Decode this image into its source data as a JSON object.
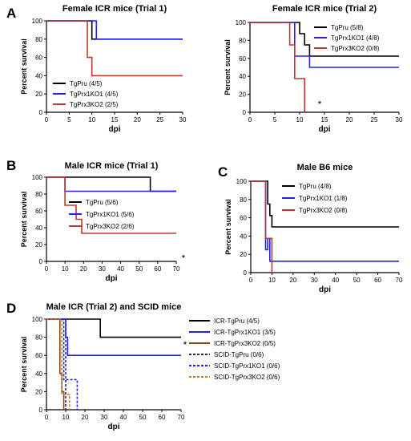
{
  "figure": {
    "description_panels": [
      "A",
      "B",
      "C",
      "D"
    ]
  },
  "chart_data": [
    {
      "type": "line",
      "panel_letter": "A",
      "title": "Female ICR mice (Trial 1)",
      "xlabel": "dpi",
      "ylabel": "Percent survival",
      "xlim": [
        0,
        30
      ],
      "ylim": [
        0,
        100
      ],
      "xticks": [
        0,
        5,
        10,
        15,
        20,
        25,
        30
      ],
      "yticks": [
        0,
        20,
        40,
        60,
        80,
        100
      ],
      "legend_position": "bottom-left",
      "annotation": "",
      "series": [
        {
          "name": "TgPru (4/5)",
          "color": "#000000",
          "dash": false,
          "points": [
            [
              0,
              100
            ],
            [
              10,
              100
            ],
            [
              10,
              80
            ],
            [
              30,
              80
            ]
          ]
        },
        {
          "name": "TgPrx1KO1 (4/5)",
          "color": "#2323e6",
          "dash": false,
          "points": [
            [
              0,
              100
            ],
            [
              11,
              100
            ],
            [
              11,
              80
            ],
            [
              30,
              80
            ]
          ]
        },
        {
          "name": "TgPrx3KO2 (2/5)",
          "color": "#c0392b",
          "dash": false,
          "points": [
            [
              0,
              100
            ],
            [
              9,
              100
            ],
            [
              9,
              60
            ],
            [
              10,
              60
            ],
            [
              10,
              40
            ],
            [
              30,
              40
            ]
          ]
        }
      ]
    },
    {
      "type": "line",
      "panel_letter": "",
      "title": "Female ICR mice (Trial 2)",
      "xlabel": "dpi",
      "ylabel": "Percent survival",
      "xlim": [
        0,
        30
      ],
      "ylim": [
        0,
        100
      ],
      "xticks": [
        0,
        5,
        10,
        15,
        20,
        25,
        30
      ],
      "yticks": [
        0,
        20,
        40,
        60,
        80,
        100
      ],
      "legend_position": "top-right",
      "annotation": "*",
      "series": [
        {
          "name": "TgPru (5/8)",
          "color": "#000000",
          "dash": false,
          "points": [
            [
              0,
              100
            ],
            [
              10,
              100
            ],
            [
              10,
              87.5
            ],
            [
              11,
              87.5
            ],
            [
              11,
              75
            ],
            [
              12,
              75
            ],
            [
              12,
              62.5
            ],
            [
              30,
              62.5
            ]
          ]
        },
        {
          "name": "TgPrx1KO1 (4/8)",
          "color": "#2323e6",
          "dash": false,
          "points": [
            [
              0,
              100
            ],
            [
              9,
              100
            ],
            [
              9,
              62.5
            ],
            [
              12,
              62.5
            ],
            [
              12,
              50
            ],
            [
              30,
              50
            ]
          ]
        },
        {
          "name": "TgPrx3KO2 (0/8)",
          "color": "#c0392b",
          "dash": false,
          "points": [
            [
              0,
              100
            ],
            [
              8,
              100
            ],
            [
              8,
              75
            ],
            [
              9,
              75
            ],
            [
              9,
              37.5
            ],
            [
              11,
              37.5
            ],
            [
              11,
              0
            ]
          ]
        }
      ]
    },
    {
      "type": "line",
      "panel_letter": "B",
      "title": "Male ICR mice (Trial 1)",
      "xlabel": "dpi",
      "ylabel": "Percent survival",
      "xlim": [
        0,
        70
      ],
      "ylim": [
        0,
        100
      ],
      "xticks": [
        0,
        10,
        20,
        30,
        40,
        50,
        60,
        70
      ],
      "yticks": [
        0,
        20,
        40,
        60,
        80,
        100
      ],
      "legend_position": "center-right",
      "annotation": "*",
      "series": [
        {
          "name": "TgPru (5/6)",
          "color": "#000000",
          "dash": false,
          "points": [
            [
              0,
              100
            ],
            [
              56,
              100
            ],
            [
              56,
              83.3
            ],
            [
              70,
              83.3
            ]
          ]
        },
        {
          "name": "TgPrx1KO1 (5/6)",
          "color": "#2323e6",
          "dash": false,
          "points": [
            [
              0,
              100
            ],
            [
              10,
              100
            ],
            [
              10,
              83.3
            ],
            [
              70,
              83.3
            ]
          ]
        },
        {
          "name": "TgPrx3KO2 (2/6)",
          "color": "#c0392b",
          "dash": false,
          "points": [
            [
              0,
              100
            ],
            [
              10,
              100
            ],
            [
              10,
              66.7
            ],
            [
              16,
              66.7
            ],
            [
              16,
              50
            ],
            [
              19,
              50
            ],
            [
              19,
              33.3
            ],
            [
              70,
              33.3
            ]
          ]
        }
      ]
    },
    {
      "type": "line",
      "panel_letter": "C",
      "title": "Male B6 mice",
      "xlabel": "dpi",
      "ylabel": "Percent survival",
      "xlim": [
        0,
        70
      ],
      "ylim": [
        0,
        100
      ],
      "xticks": [
        0,
        10,
        20,
        30,
        40,
        50,
        60,
        70
      ],
      "yticks": [
        0,
        20,
        40,
        60,
        80,
        100
      ],
      "legend_position": "top-right",
      "annotation": "",
      "series": [
        {
          "name": "TgPru (4/8)",
          "color": "#000000",
          "dash": false,
          "points": [
            [
              0,
              100
            ],
            [
              8,
              100
            ],
            [
              8,
              75
            ],
            [
              9,
              75
            ],
            [
              9,
              62.5
            ],
            [
              10,
              62.5
            ],
            [
              10,
              50
            ],
            [
              70,
              50
            ]
          ]
        },
        {
          "name": "TgPrx1KO1 (1/8)",
          "color": "#2323e6",
          "dash": false,
          "points": [
            [
              0,
              100
            ],
            [
              7,
              100
            ],
            [
              7,
              25
            ],
            [
              8,
              25
            ],
            [
              8,
              37.5
            ],
            [
              9,
              37.5
            ],
            [
              9,
              12.5
            ],
            [
              70,
              12.5
            ]
          ]
        },
        {
          "name": "TgPrx3KO2 (0/8)",
          "color": "#c0392b",
          "dash": false,
          "points": [
            [
              0,
              100
            ],
            [
              7,
              100
            ],
            [
              7,
              37.5
            ],
            [
              10,
              37.5
            ],
            [
              10,
              0
            ]
          ]
        }
      ]
    },
    {
      "type": "line",
      "panel_letter": "D",
      "title": "Male ICR (Trial 2) and SCID mice",
      "xlabel": "dpi",
      "ylabel": "Percent survival",
      "xlim": [
        0,
        70
      ],
      "ylim": [
        0,
        100
      ],
      "xticks": [
        0,
        10,
        20,
        30,
        40,
        50,
        60,
        70
      ],
      "yticks": [
        0,
        20,
        40,
        60,
        80,
        100
      ],
      "legend_position": "right-outside",
      "annotation": "*",
      "series": [
        {
          "name": "ICR-TgPru (4/5)",
          "color": "#000000",
          "dash": false,
          "points": [
            [
              0,
              100
            ],
            [
              28,
              100
            ],
            [
              28,
              80
            ],
            [
              70,
              80
            ]
          ]
        },
        {
          "name": "ICR-TgPrx1KO1 (3/5)",
          "color": "#2323e6",
          "dash": false,
          "points": [
            [
              0,
              100
            ],
            [
              10,
              100
            ],
            [
              10,
              80
            ],
            [
              11,
              80
            ],
            [
              11,
              60
            ],
            [
              70,
              60
            ]
          ]
        },
        {
          "name": "ICR-TgPrx3KO2 (0/5)",
          "color": "#8b4513",
          "dash": false,
          "points": [
            [
              0,
              100
            ],
            [
              7,
              100
            ],
            [
              7,
              40
            ],
            [
              8,
              40
            ],
            [
              8,
              20
            ],
            [
              9,
              20
            ],
            [
              9,
              0
            ]
          ]
        },
        {
          "name": "SCID-TgPru (0/6)",
          "color": "#2a2a6a",
          "dash": true,
          "points": [
            [
              0,
              100
            ],
            [
              9,
              100
            ],
            [
              9,
              33.3
            ],
            [
              10,
              33.3
            ],
            [
              10,
              0
            ]
          ]
        },
        {
          "name": "SCID-TgPrx1KO1 (0/6)",
          "color": "#2323e6",
          "dash": true,
          "points": [
            [
              0,
              100
            ],
            [
              10,
              100
            ],
            [
              10,
              33.3
            ],
            [
              16,
              33.3
            ],
            [
              16,
              0
            ]
          ]
        },
        {
          "name": "SCID-TgPrx3KO2 (0/6)",
          "color": "#c07a30",
          "dash": true,
          "points": [
            [
              0,
              100
            ],
            [
              8,
              100
            ],
            [
              8,
              16.7
            ],
            [
              12,
              16.7
            ],
            [
              12,
              0
            ]
          ]
        }
      ]
    }
  ]
}
